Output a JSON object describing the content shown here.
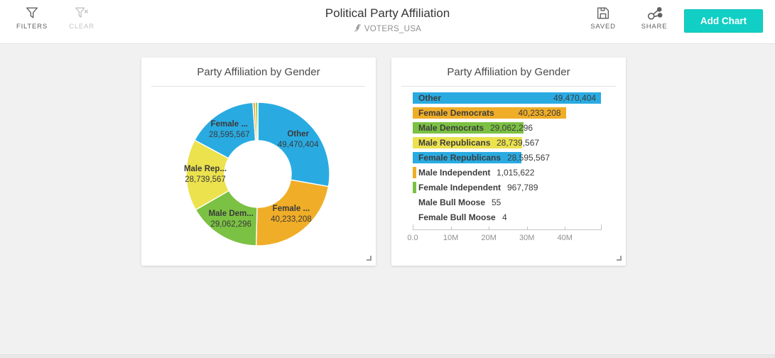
{
  "header": {
    "filters_label": "FILTERS",
    "clear_label": "CLEAR",
    "title": "Political Party Affiliation",
    "source": "VOTERS_USA",
    "saved_label": "SAVED",
    "share_label": "SHARE",
    "add_chart_label": "Add Chart"
  },
  "colors": {
    "accent_teal": "#11cfc4",
    "palette_blue": "#29abe2",
    "palette_amber": "#f0ad27",
    "palette_green": "#7bc143",
    "palette_yellow": "#ebe24e"
  },
  "chart_data": [
    {
      "type": "pie",
      "donut": true,
      "title": "Party Affiliation by Gender",
      "legend_position": "none",
      "slices": [
        {
          "label": "Other",
          "display": "Other",
          "value": 49470404,
          "value_display": "49,470,404",
          "color": "#29abe2"
        },
        {
          "label": "Female Democrats",
          "display": "Female ...",
          "value": 40233208,
          "value_display": "40,233,208",
          "color": "#f0ad27"
        },
        {
          "label": "Male Democrats",
          "display": "Male Dem...",
          "value": 29062296,
          "value_display": "29,062,296",
          "color": "#7bc143"
        },
        {
          "label": "Male Republicans",
          "display": "Male Rep...",
          "value": 28739567,
          "value_display": "28,739,567",
          "color": "#ebe24e"
        },
        {
          "label": "Female Republicans",
          "display": "Female ...",
          "value": 28595567,
          "value_display": "28,595,567",
          "color": "#29abe2"
        },
        {
          "label": "Male Independent",
          "display": "",
          "value": 1015622,
          "value_display": "1,015,622",
          "color": "#f0ad27"
        },
        {
          "label": "Female Independent",
          "display": "",
          "value": 967789,
          "value_display": "967,789",
          "color": "#7bc143"
        },
        {
          "label": "Male Bull Moose",
          "display": "",
          "value": 55,
          "value_display": "55",
          "color": "#ebe24e"
        },
        {
          "label": "Female Bull Moose",
          "display": "",
          "value": 4,
          "value_display": "4",
          "color": "#29abe2"
        }
      ]
    },
    {
      "type": "bar",
      "orientation": "horizontal",
      "title": "Party Affiliation by Gender",
      "categories": [
        "Other",
        "Female Democrats",
        "Male Democrats",
        "Male Republicans",
        "Female Republicans",
        "Male Independent",
        "Female Independent",
        "Male Bull Moose",
        "Female Bull Moose"
      ],
      "values": [
        49470404,
        40233208,
        29062296,
        28739567,
        28595567,
        1015622,
        967789,
        55,
        4
      ],
      "value_labels": [
        "49,470,404",
        "40,233,208",
        "29,062,296",
        "28,739,567",
        "28,595,567",
        "1,015,622",
        "967,789",
        "55",
        "4"
      ],
      "colors": [
        "#29abe2",
        "#f0ad27",
        "#7bc143",
        "#ebe24e",
        "#29abe2",
        "#f0ad27",
        "#7bc143",
        "#ebe24e",
        "#29abe2"
      ],
      "xlim": [
        0,
        49470404
      ],
      "x_ticks": [
        {
          "value": 0,
          "label": "0.0"
        },
        {
          "value": 10000000,
          "label": "10M"
        },
        {
          "value": 20000000,
          "label": "20M"
        },
        {
          "value": 30000000,
          "label": "30M"
        },
        {
          "value": 40000000,
          "label": "40M"
        }
      ],
      "grid": false
    }
  ]
}
